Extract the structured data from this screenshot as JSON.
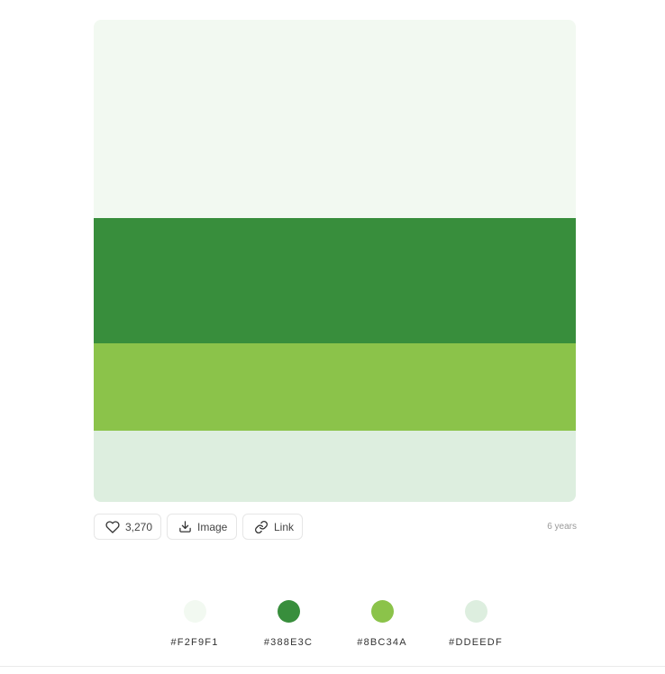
{
  "palette": {
    "colors": [
      {
        "hex": "#F2F9F1",
        "value": "#F2F9F1"
      },
      {
        "hex": "#388E3C",
        "value": "#388E3C"
      },
      {
        "hex": "#8BC34A",
        "value": "#8BC34A"
      },
      {
        "hex": "#DDEEDF",
        "value": "#DDEEDF"
      }
    ]
  },
  "actions": {
    "likes": "3,270",
    "image_label": "Image",
    "link_label": "Link",
    "age": "6 years",
    "icons": {
      "like": "heart-icon",
      "image": "download-icon",
      "link": "link-icon"
    }
  }
}
